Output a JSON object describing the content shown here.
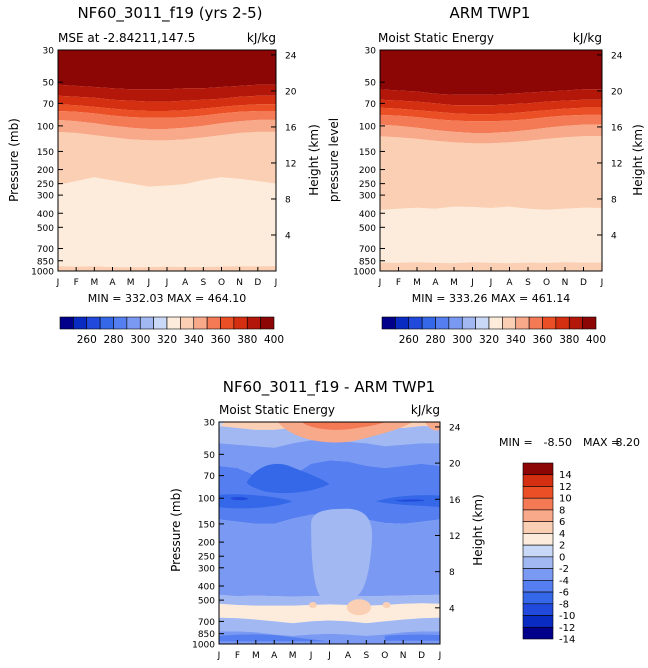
{
  "palette_colors": {
    "mse": [
      "#00008b",
      "#0a2bc2",
      "#2149dc",
      "#3568e8",
      "#557ff0",
      "#7a99f2",
      "#a2b8f2",
      "#c9d8f6",
      "#fdecdc",
      "#fbcfb3",
      "#f8a98a",
      "#f47a56",
      "#ea4f26",
      "#d42f10",
      "#b3170a",
      "#8c0606"
    ],
    "diff": [
      "#00008b",
      "#0a2bc2",
      "#2149dc",
      "#3568e8",
      "#557ff0",
      "#7a99f2",
      "#a2b8f2",
      "#c9d8f6",
      "#fdecdc",
      "#fbcfb3",
      "#f8a98a",
      "#f47a56",
      "#ea4f26",
      "#d42f10",
      "#8c0606"
    ]
  },
  "chart_data": [
    {
      "id": "model",
      "type": "heatmap",
      "title": "NF60_3011_f19 (yrs 2-5)",
      "subtitle_left": "MSE at -2.84211,147.5",
      "subtitle_right": "kJ/kg",
      "ylabel": "Pressure (mb)",
      "ylabel_right": "Height (km)",
      "months": [
        "J",
        "F",
        "M",
        "A",
        "M",
        "J",
        "J",
        "A",
        "S",
        "O",
        "N",
        "D",
        "J"
      ],
      "pressure_ticks": [
        "30",
        "50",
        "70",
        "100",
        "150",
        "200",
        "250",
        "300",
        "400",
        "500",
        "700",
        "850",
        "1000"
      ],
      "height_ticks": [
        "24",
        "20",
        "16",
        "12",
        "8",
        "4"
      ],
      "stats": "MIN = 332.03 MAX = 464.10",
      "colorbar_labels": [
        "260",
        "280",
        "300",
        "320",
        "340",
        "360",
        "380",
        "400"
      ],
      "layers_top_to_bottom_at_J": [
        {
          "band": 15,
          "from": "30 mb"
        },
        {
          "band": 14,
          "from": "~52 mb"
        },
        {
          "band": 13,
          "from": "~62 mb"
        },
        {
          "band": 12,
          "from": "~72 mb"
        },
        {
          "band": 11,
          "from": "~80 mb"
        },
        {
          "band": 10,
          "from": "~92 mb"
        },
        {
          "band": 9,
          "from": "~115 mb"
        },
        {
          "band": 8,
          "from": "~260 mb"
        },
        {
          "band": 9,
          "from": "~930 mb"
        }
      ]
    },
    {
      "id": "obs",
      "type": "heatmap",
      "title": "ARM TWP1",
      "subtitle_left": "Moist Static Energy",
      "subtitle_right": "kJ/kg",
      "ylabel": "pressure level",
      "ylabel_right": "Height (km)",
      "months": [
        "J",
        "F",
        "M",
        "A",
        "M",
        "J",
        "J",
        "A",
        "S",
        "O",
        "N",
        "D",
        "J"
      ],
      "pressure_ticks": [
        "30",
        "50",
        "70",
        "100",
        "150",
        "200",
        "250",
        "300",
        "400",
        "500",
        "700",
        "850",
        "1000"
      ],
      "height_ticks": [
        "24",
        "20",
        "16",
        "12",
        "8",
        "4"
      ],
      "stats": "MIN = 333.26 MAX = 461.14",
      "colorbar_labels": [
        "260",
        "280",
        "300",
        "320",
        "340",
        "360",
        "380",
        "400"
      ]
    },
    {
      "id": "diff",
      "type": "heatmap",
      "title": "NF60_3011_f19 - ARM TWP1",
      "subtitle_left": "Moist Static Energy",
      "subtitle_right": "kJ/kg",
      "ylabel": "Pressure (mb)",
      "ylabel_right": "Height (km)",
      "months": [
        "J",
        "F",
        "M",
        "A",
        "M",
        "J",
        "J",
        "A",
        "S",
        "O",
        "N",
        "D",
        "J"
      ],
      "pressure_ticks": [
        "30",
        "50",
        "70",
        "100",
        "150",
        "200",
        "250",
        "300",
        "400",
        "500",
        "700",
        "850",
        "1000"
      ],
      "height_ticks": [
        "24",
        "20",
        "16",
        "12",
        "8",
        "4"
      ],
      "stats_min_label": "MIN =",
      "stats_min_value": "-8.50",
      "stats_max_label": "MAX =",
      "stats_max_value": "8.20",
      "colorbar_labels": [
        "14",
        "12",
        "10",
        "8",
        "6",
        "4",
        "2",
        "0",
        "-2",
        "-4",
        "-6",
        "-8",
        "-10",
        "-12",
        "-14"
      ]
    }
  ]
}
